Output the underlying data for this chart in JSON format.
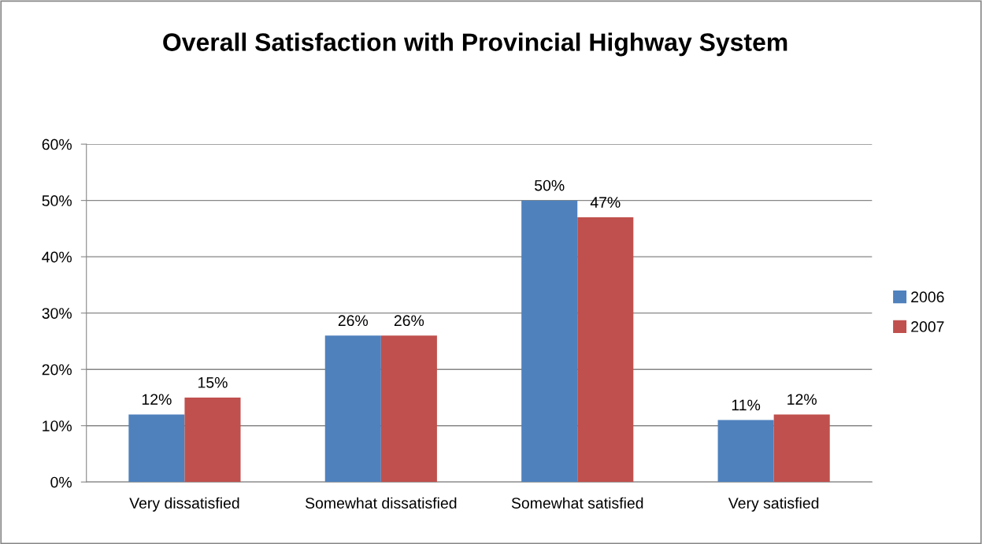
{
  "chart_data": {
    "type": "bar",
    "title": "Overall Satisfaction with Provincial Highway System",
    "categories": [
      "Very dissatisfied",
      "Somewhat dissatisfied",
      "Somewhat satisfied",
      "Very satisfied"
    ],
    "series": [
      {
        "name": "2006",
        "color": "#4f81bd",
        "values": [
          12,
          26,
          50,
          11
        ],
        "value_labels": [
          "12%",
          "26%",
          "50%",
          "11%"
        ]
      },
      {
        "name": "2007",
        "color": "#c0504d",
        "values": [
          15,
          26,
          47,
          12
        ],
        "value_labels": [
          "15%",
          "26%",
          "47%",
          "12%"
        ]
      }
    ],
    "ylim": [
      0,
      60
    ],
    "yticks": [
      {
        "value": 0,
        "label": "0%"
      },
      {
        "value": 10,
        "label": "10%"
      },
      {
        "value": 20,
        "label": "20%"
      },
      {
        "value": 30,
        "label": "30%"
      },
      {
        "value": 40,
        "label": "40%"
      },
      {
        "value": 50,
        "label": "50%"
      },
      {
        "value": 60,
        "label": "60%"
      }
    ],
    "grid": "y",
    "legend": "right"
  }
}
